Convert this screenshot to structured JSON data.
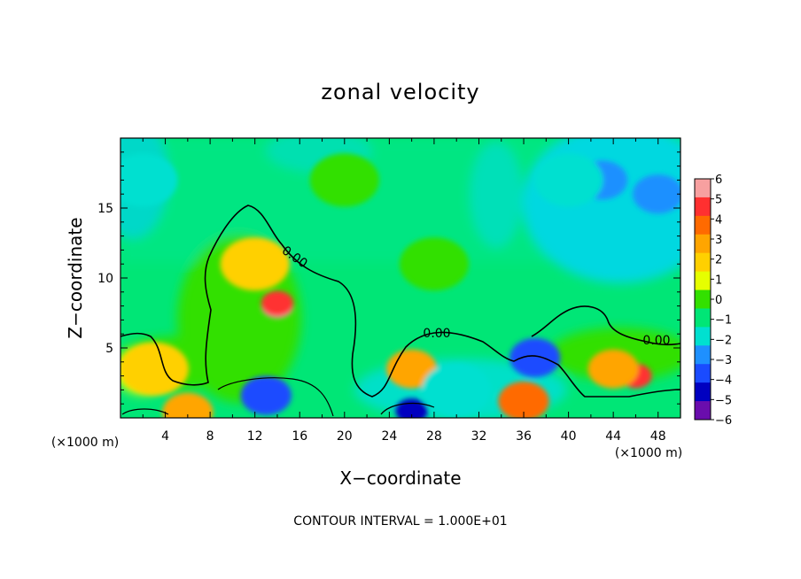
{
  "chart_data": {
    "type": "heatmap",
    "title": "zonal velocity",
    "xlabel": "X−coordinate",
    "ylabel": "Z−coordinate",
    "x_unit_left": "(×1000 m)",
    "x_unit_right": "(×1000 m)",
    "xlim": [
      0,
      50
    ],
    "ylim": [
      0,
      20
    ],
    "x_ticks": [
      4,
      8,
      12,
      16,
      20,
      24,
      28,
      32,
      36,
      40,
      44,
      48
    ],
    "y_ticks": [
      5,
      10,
      15
    ],
    "colorbar": {
      "range": [
        -6,
        6
      ],
      "ticks": [
        "6",
        "5",
        "4",
        "3",
        "2",
        "1",
        "0",
        "−1",
        "−2",
        "−3",
        "−4",
        "−5",
        "−6"
      ],
      "colors": [
        "#f7a0a0",
        "#ff3030",
        "#ff6a00",
        "#ffa500",
        "#ffd000",
        "#e6ff00",
        "#33e000",
        "#00e676",
        "#00e0d0",
        "#1e90ff",
        "#1a4bff",
        "#0000c0",
        "#6a0dad"
      ]
    },
    "contour_level": "0.00",
    "contour_labels": [
      "0.00",
      "0.00",
      "0.00"
    ],
    "contour_interval": "CONTOUR INTERVAL = 1.000E+01",
    "features": [
      {
        "x": 14,
        "z": 8,
        "value": 6
      },
      {
        "x": 14,
        "z": 8.2,
        "value": 5
      },
      {
        "x": 12,
        "z": 11,
        "value": 2
      },
      {
        "x": 46,
        "z": 3,
        "value": 5
      },
      {
        "x": 44,
        "z": 3.5,
        "value": 3
      },
      {
        "x": 26,
        "z": 3.5,
        "value": 3
      },
      {
        "x": 3,
        "z": 3.5,
        "value": 2
      },
      {
        "x": 37,
        "z": 4.3,
        "value": -4
      },
      {
        "x": 13,
        "z": 1.6,
        "value": -4
      },
      {
        "x": 43,
        "z": 17,
        "value": -3
      },
      {
        "x": 48,
        "z": 16,
        "value": -3
      },
      {
        "x": 2,
        "z": 17,
        "value": -2
      },
      {
        "x": 40,
        "z": 17,
        "value": -2
      },
      {
        "x": 20,
        "z": 17,
        "value": 0
      },
      {
        "x": 28,
        "z": 11,
        "value": 0
      },
      {
        "x": 30,
        "z": 2,
        "value": -2
      },
      {
        "x": 36,
        "z": 1.2,
        "value": 4
      },
      {
        "x": 26,
        "z": 0.5,
        "value": -5
      },
      {
        "x": 6,
        "z": 0.4,
        "value": 3
      }
    ]
  }
}
